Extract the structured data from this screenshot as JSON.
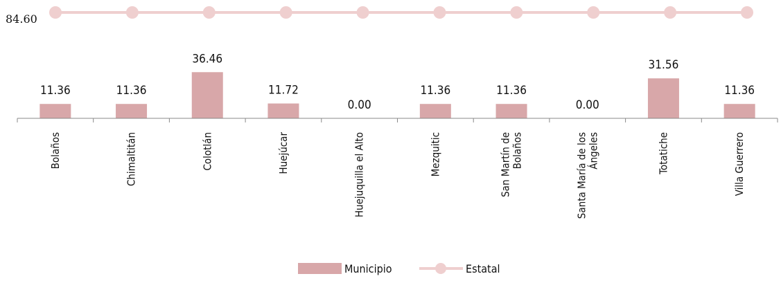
{
  "chart_data": {
    "type": "bar",
    "categories": [
      "Bolaños",
      "Chimaltitán",
      "Colotlán",
      "Huejúcar",
      "Huejuquilla el Alto",
      "Mezquitic",
      "San Martín de Bolaños",
      "Santa María de los Ángeles",
      "Totatiche",
      "Villa Guerrero"
    ],
    "category_lines": [
      [
        "Bolaños"
      ],
      [
        "Chimaltitán"
      ],
      [
        "Colotlán"
      ],
      [
        "Huejúcar"
      ],
      [
        "Huejuquilla el Alto"
      ],
      [
        "Mezquitic"
      ],
      [
        "San Martín de",
        "Bolaños"
      ],
      [
        "Santa María de los",
        "Ángeles"
      ],
      [
        "Totatiche"
      ],
      [
        "Villa Guerrero"
      ]
    ],
    "series": [
      {
        "name": "Municipio",
        "type": "bar",
        "values": [
          11.36,
          11.36,
          36.46,
          11.72,
          0.0,
          11.36,
          11.36,
          0.0,
          31.56,
          11.36
        ],
        "labels": [
          "11.36",
          "11.36",
          "36.46",
          "11.72",
          "0.00",
          "11.36",
          "11.36",
          "0.00",
          "31.56",
          "11.36"
        ]
      },
      {
        "name": "Estatal",
        "type": "line",
        "values": [
          84.6,
          84.6,
          84.6,
          84.6,
          84.6,
          84.6,
          84.6,
          84.6,
          84.6,
          84.6
        ],
        "label": "84.60"
      }
    ],
    "legend": {
      "position": "bottom",
      "items": [
        "Municipio",
        "Estatal"
      ]
    },
    "colors": {
      "bar": "#d8a7a9",
      "line": "#efcfcf",
      "marker": "#efcfcf",
      "axis": "#888888"
    },
    "grid": false
  }
}
